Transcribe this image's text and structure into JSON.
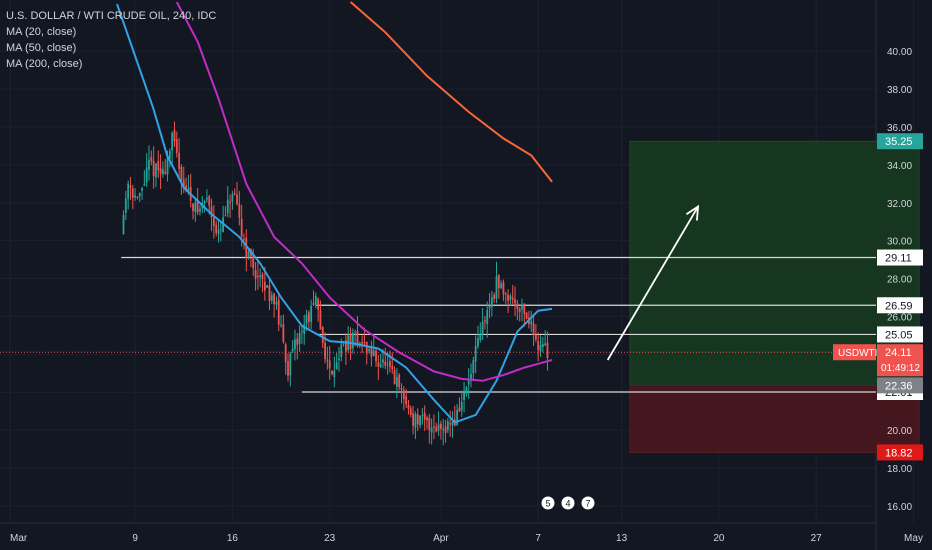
{
  "header": {
    "title": "U.S. DOLLAR / WTI CRUDE OIL, 240, IDC",
    "indicators": [
      "MA (20, close)",
      "MA (50, close)",
      "MA (200, close)"
    ]
  },
  "chart_data": {
    "type": "candlestick",
    "symbol": "USDWTI",
    "interval": "240",
    "ylim": [
      15.2,
      42.6
    ],
    "y_ticks": [
      "16.00",
      "18.00",
      "20.00",
      "22.00",
      "24.00",
      "26.00",
      "28.00",
      "30.00",
      "32.00",
      "34.00",
      "36.00",
      "38.00",
      "40.00"
    ],
    "x_ticks": [
      "Mar",
      "9",
      "16",
      "23",
      "Apr",
      "7",
      "13",
      "20",
      "27",
      "May"
    ],
    "x_tick_day": [
      0,
      9,
      16,
      23,
      31,
      38,
      44,
      51,
      58,
      65
    ],
    "price_path": [
      [
        8.0,
        30.5
      ],
      [
        8.5,
        33.2
      ],
      [
        9.2,
        32.0
      ],
      [
        10.0,
        34.0
      ],
      [
        11.0,
        33.5
      ],
      [
        11.7,
        35.4
      ],
      [
        12.5,
        33.0
      ],
      [
        13.5,
        31.5
      ],
      [
        14.2,
        32.3
      ],
      [
        15.0,
        30.2
      ],
      [
        16.0,
        32.5
      ],
      [
        17.0,
        29.5
      ],
      [
        18.0,
        27.8
      ],
      [
        19.0,
        27.0
      ],
      [
        20.0,
        23.3
      ],
      [
        21.0,
        25.4
      ],
      [
        22.0,
        26.7
      ],
      [
        22.5,
        24.7
      ],
      [
        23.0,
        23.0
      ],
      [
        24.0,
        24.5
      ],
      [
        25.0,
        24.8
      ],
      [
        26.0,
        24.0
      ],
      [
        27.0,
        23.4
      ],
      [
        28.0,
        22.2
      ],
      [
        29.0,
        20.6
      ],
      [
        30.0,
        20.3
      ],
      [
        31.0,
        20.2
      ],
      [
        32.0,
        20.5
      ],
      [
        33.0,
        22.5
      ],
      [
        34.0,
        25.5
      ],
      [
        35.0,
        27.7
      ],
      [
        35.8,
        27.2
      ],
      [
        37.0,
        26.3
      ],
      [
        38.0,
        24.6
      ],
      [
        38.8,
        24.1
      ]
    ],
    "moving_averages": [
      {
        "name": "MA (20, close)",
        "color": "#2fa3e6",
        "points": [
          [
            7.7,
            42.5
          ],
          [
            10.3,
            37.0
          ],
          [
            11.3,
            34.5
          ],
          [
            12.5,
            32.8
          ],
          [
            14.5,
            31.4
          ],
          [
            16.5,
            30.2
          ],
          [
            18.0,
            28.8
          ],
          [
            19.5,
            27.0
          ],
          [
            21.0,
            25.5
          ],
          [
            23.0,
            24.7
          ],
          [
            24.5,
            24.6
          ],
          [
            26.5,
            24.3
          ],
          [
            28.5,
            23.3
          ],
          [
            30.5,
            21.6
          ],
          [
            32.0,
            20.4
          ],
          [
            33.5,
            20.8
          ],
          [
            35.0,
            22.6
          ],
          [
            36.5,
            25.2
          ],
          [
            38.0,
            26.3
          ],
          [
            39.0,
            26.4
          ]
        ]
      },
      {
        "name": "MA (50, close)",
        "color": "#c02dc5",
        "points": [
          [
            12.0,
            42.6
          ],
          [
            13.5,
            40.5
          ],
          [
            15.0,
            37.5
          ],
          [
            17.0,
            33.0
          ],
          [
            19.0,
            30.2
          ],
          [
            21.0,
            28.8
          ],
          [
            23.0,
            27.0
          ],
          [
            25.5,
            25.3
          ],
          [
            28.0,
            24.1
          ],
          [
            30.5,
            23.1
          ],
          [
            32.5,
            22.7
          ],
          [
            34.0,
            22.6
          ],
          [
            35.5,
            22.9
          ],
          [
            37.0,
            23.3
          ],
          [
            38.0,
            23.5
          ],
          [
            39.0,
            23.7
          ]
        ]
      },
      {
        "name": "MA (200, close)",
        "color": "#f9653b",
        "points": [
          [
            24.5,
            42.6
          ],
          [
            27.0,
            41.0
          ],
          [
            30.0,
            38.7
          ],
          [
            33.0,
            36.8
          ],
          [
            35.5,
            35.4
          ],
          [
            37.5,
            34.5
          ],
          [
            39.0,
            33.1
          ]
        ]
      }
    ],
    "level_lines": [
      {
        "value": 29.11,
        "label": "29.11",
        "start_day": 8
      },
      {
        "value": 26.59,
        "label": "26.59",
        "start_day": 22
      },
      {
        "value": 25.05,
        "label": "25.05",
        "start_day": 22
      },
      {
        "value": 22.01,
        "label": "22.01",
        "start_day": 21
      }
    ],
    "position": {
      "entry": 22.36,
      "entry_label": "22.36",
      "target": 35.25,
      "target_label": "35.25",
      "stop": 18.82,
      "stop_label": "18.82",
      "start_day": 44.6,
      "end_day": 65.4
    },
    "arrow": {
      "from": [
        43.0,
        23.7
      ],
      "to": [
        49.5,
        31.8
      ]
    },
    "last_price": {
      "value": 24.11,
      "label": "24.11",
      "symbol": "USDWTI",
      "countdown": "01:49:12"
    },
    "event_badges": [
      "5",
      "4",
      "7"
    ],
    "colors": {
      "background": "#131722",
      "up": "#26a69a",
      "down": "#ef5350",
      "grid": "#1c2030",
      "text": "#d1d4dc",
      "target_zone": "#163620",
      "target_label": "#26a69a",
      "stop_zone": "#44161d",
      "stop_label": "#e01818",
      "line_label_bg": "#ffffff",
      "last_price_bg": "#ef5350"
    }
  }
}
